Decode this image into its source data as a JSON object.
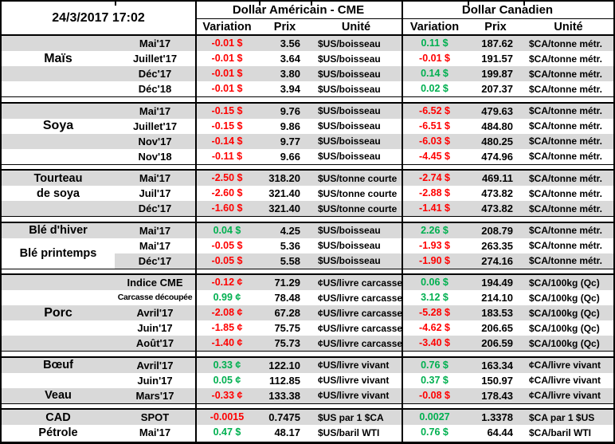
{
  "meta": {
    "timestamp": "24/3/2017 17:02"
  },
  "header": {
    "us_title": "Dollar Américain - CME",
    "ca_title": "Dollar Canadien",
    "columns": {
      "variation": "Variation",
      "prix": "Prix",
      "unite": "Unité"
    }
  },
  "colors": {
    "negative": "#FF0000",
    "positive": "#00B050",
    "band": "#D9D9D9",
    "border": "#000000"
  },
  "sections": [
    {
      "names": [
        {
          "label": "Maïs",
          "row": 1,
          "big": true
        }
      ],
      "rows": [
        {
          "shade": "full",
          "month": "Mai'17",
          "us_var": "-0.01 $",
          "us_prix": "3.56",
          "us_unit": "$US/boisseau",
          "ca_var": "0.11 $",
          "ca_prix": "187.62",
          "ca_unit": "$CA/tonne métr."
        },
        {
          "month": "Juillet'17",
          "us_var": "-0.01 $",
          "us_prix": "3.64",
          "us_unit": "$US/boisseau",
          "ca_var": "-0.01 $",
          "ca_prix": "191.57",
          "ca_unit": "$CA/tonne métr."
        },
        {
          "shade": "full",
          "month": "Déc'17",
          "us_var": "-0.01 $",
          "us_prix": "3.80",
          "us_unit": "$US/boisseau",
          "ca_var": "0.14 $",
          "ca_prix": "199.87",
          "ca_unit": "$CA/tonne métr."
        },
        {
          "month": "Déc'18",
          "us_var": "-0.01 $",
          "us_prix": "3.94",
          "us_unit": "$US/boisseau",
          "ca_var": "0.02 $",
          "ca_prix": "207.37",
          "ca_unit": "$CA/tonne métr."
        }
      ]
    },
    {
      "names": [
        {
          "label": "Soya",
          "row": 1,
          "big": true
        }
      ],
      "rows": [
        {
          "shade": "full",
          "month": "Mai'17",
          "us_var": "-0.15 $",
          "us_prix": "9.76",
          "us_unit": "$US/boisseau",
          "ca_var": "-6.52 $",
          "ca_prix": "479.63",
          "ca_unit": "$CA/tonne métr."
        },
        {
          "month": "Juillet'17",
          "us_var": "-0.15 $",
          "us_prix": "9.86",
          "us_unit": "$US/boisseau",
          "ca_var": "-6.51 $",
          "ca_prix": "484.80",
          "ca_unit": "$CA/tonne métr."
        },
        {
          "shade": "full",
          "month": "Nov'17",
          "us_var": "-0.14 $",
          "us_prix": "9.77",
          "us_unit": "$US/boisseau",
          "ca_var": "-6.03 $",
          "ca_prix": "480.25",
          "ca_unit": "$CA/tonne métr."
        },
        {
          "month": "Nov'18",
          "us_var": "-0.11 $",
          "us_prix": "9.66",
          "us_unit": "$US/boisseau",
          "ca_var": "-4.45 $",
          "ca_prix": "474.96",
          "ca_unit": "$CA/tonne métr."
        }
      ]
    },
    {
      "names": [
        {
          "label": "Tourteau",
          "row": 0
        },
        {
          "label": "de soya",
          "row": 1
        }
      ],
      "rows": [
        {
          "shade": "full",
          "month": "Mai'17",
          "us_var": "-2.50 $",
          "us_prix": "318.20",
          "us_unit": "$US/tonne courte",
          "ca_var": "-2.74 $",
          "ca_prix": "469.11",
          "ca_unit": "$CA/tonne métr."
        },
        {
          "month": "Juil'17",
          "us_var": "-2.60 $",
          "us_prix": "321.40",
          "us_unit": "$US/tonne courte",
          "ca_var": "-2.88 $",
          "ca_prix": "473.82",
          "ca_unit": "$CA/tonne métr."
        },
        {
          "shade": "full",
          "month": "Déc'17",
          "us_var": "-1.60 $",
          "us_prix": "321.40",
          "us_unit": "$US/tonne courte",
          "ca_var": "-1.41 $",
          "ca_prix": "473.82",
          "ca_unit": "$CA/tonne métr."
        }
      ]
    },
    {
      "names": [
        {
          "label": "Blé d'hiver",
          "row": 0
        },
        {
          "label": "Blé printemps",
          "row": 1,
          "span": 2
        }
      ],
      "rows": [
        {
          "shade": "full",
          "month": "Mai'17",
          "us_var": "0.04 $",
          "us_prix": "4.25",
          "us_unit": "$US/boisseau",
          "ca_var": "2.26 $",
          "ca_prix": "208.79",
          "ca_unit": "$CA/tonne métr."
        },
        {
          "month": "Mai'17",
          "us_var": "-0.05 $",
          "us_prix": "5.36",
          "us_unit": "$US/boisseau",
          "ca_var": "-1.93 $",
          "ca_prix": "263.35",
          "ca_unit": "$CA/tonne métr."
        },
        {
          "shade": "month",
          "month": "Déc'17",
          "us_var": "-0.05 $",
          "us_prix": "5.58",
          "us_unit": "$US/boisseau",
          "ca_var": "-1.90 $",
          "ca_prix": "274.16",
          "ca_unit": "$CA/tonne métr."
        }
      ]
    },
    {
      "names": [
        {
          "label": "Porc",
          "row": 2,
          "big": true
        }
      ],
      "rows": [
        {
          "shade": "full",
          "month": "Indice CME",
          "us_var": "-0.12 ¢",
          "us_prix": "71.29",
          "us_unit": "¢US/livre carcasse",
          "ca_var": "0.06 $",
          "ca_prix": "194.49",
          "ca_unit": "$CA/100kg (Qc)"
        },
        {
          "month": "Carcasse découpée",
          "small": true,
          "us_var": "0.99 ¢",
          "us_prix": "78.48",
          "us_unit": "¢US/livre carcasse",
          "ca_var": "3.12 $",
          "ca_prix": "214.10",
          "ca_unit": "$CA/100kg (Qc)"
        },
        {
          "shade": "full",
          "month": "Avril'17",
          "us_var": "-2.08 ¢",
          "us_prix": "67.28",
          "us_unit": "¢US/livre carcasse",
          "ca_var": "-5.28 $",
          "ca_prix": "183.53",
          "ca_unit": "$CA/100kg (Qc)"
        },
        {
          "month": "Juin'17",
          "us_var": "-1.85 ¢",
          "us_prix": "75.75",
          "us_unit": "¢US/livre carcasse",
          "ca_var": "-4.62 $",
          "ca_prix": "206.65",
          "ca_unit": "$CA/100kg (Qc)"
        },
        {
          "shade": "full",
          "month": "Août'17",
          "us_var": "-1.40 ¢",
          "us_prix": "75.73",
          "us_unit": "¢US/livre carcasse",
          "ca_var": "-3.40 $",
          "ca_prix": "206.59",
          "ca_unit": "$CA/100kg (Qc)"
        }
      ]
    },
    {
      "names": [
        {
          "label": "Bœuf",
          "row": 0
        },
        {
          "label": "Veau",
          "row": 2
        }
      ],
      "rows": [
        {
          "shade": "full",
          "month": "Avril'17",
          "us_var": "0.33 ¢",
          "us_prix": "122.10",
          "us_unit": "¢US/livre vivant",
          "ca_var": "0.76 $",
          "ca_prix": "163.34",
          "ca_unit": "¢CA/livre vivant"
        },
        {
          "month": "Juin'17",
          "us_var": "0.05 ¢",
          "us_prix": "112.85",
          "us_unit": "¢US/livre vivant",
          "ca_var": "0.37 $",
          "ca_prix": "150.97",
          "ca_unit": "¢CA/livre vivant"
        },
        {
          "shade": "full",
          "month": "Mars'17",
          "us_var": "-0.33 ¢",
          "us_prix": "133.38",
          "us_unit": "¢US/livre vivant",
          "ca_var": "-0.08 $",
          "ca_prix": "178.43",
          "ca_unit": "¢CA/livre vivant"
        }
      ]
    },
    {
      "names": [
        {
          "label": "CAD",
          "row": 0
        },
        {
          "label": "Pétrole",
          "row": 1
        }
      ],
      "rows": [
        {
          "shade": "full",
          "month": "SPOT",
          "us_var": "-0.0015",
          "us_prix": "0.7475",
          "us_unit": "$US par 1 $CA",
          "ca_var": "0.0027",
          "ca_prix": "1.3378",
          "ca_unit": "$CA par 1 $US"
        },
        {
          "month": "Mai'17",
          "us_var": "0.47 $",
          "us_prix": "48.17",
          "us_unit": "$US/baril WTI",
          "ca_var": "0.76 $",
          "ca_prix": "64.44",
          "ca_unit": "$CA/baril WTI"
        }
      ]
    }
  ]
}
